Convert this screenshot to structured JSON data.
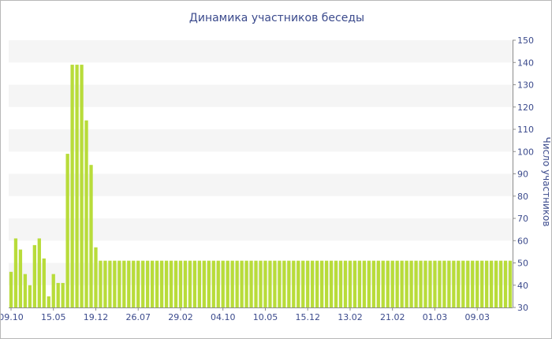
{
  "chart_data": {
    "type": "bar",
    "title": "Динамика участников беседы",
    "xlabel": "",
    "ylabel": "Число участников",
    "ylim": [
      30,
      150
    ],
    "y_ticks": [
      30,
      40,
      50,
      60,
      70,
      80,
      90,
      100,
      110,
      120,
      130,
      140,
      150
    ],
    "x_tick_labels": [
      "09.10",
      "15.05",
      "19.12",
      "26.07",
      "29.02",
      "04.10",
      "10.05",
      "15.12",
      "13.02",
      "21.02",
      "01.03",
      "09.03"
    ],
    "x_tick_bar_index": [
      0,
      9,
      18,
      27,
      36,
      45,
      54,
      63,
      72,
      81,
      90,
      99
    ],
    "y_axis_position": "right",
    "grid": "horizontal bands",
    "legend": "none",
    "values": [
      46,
      61,
      56,
      45,
      40,
      58,
      61,
      52,
      35,
      45,
      41,
      41,
      99,
      139,
      139,
      139,
      114,
      94,
      57,
      51,
      51,
      51,
      51,
      51,
      51,
      51,
      51,
      51,
      51,
      51,
      51,
      51,
      51,
      51,
      51,
      51,
      51,
      51,
      51,
      51,
      51,
      51,
      51,
      51,
      51,
      51,
      51,
      51,
      51,
      51,
      51,
      51,
      51,
      51,
      51,
      51,
      51,
      51,
      51,
      51,
      51,
      51,
      51,
      51,
      51,
      51,
      51,
      51,
      51,
      51,
      51,
      51,
      51,
      51,
      51,
      51,
      51,
      51,
      51,
      51,
      51,
      51,
      51,
      51,
      51,
      51,
      51,
      51,
      51,
      51,
      51,
      51,
      51,
      51,
      51,
      51,
      51,
      51,
      51,
      51,
      51,
      51,
      51,
      51,
      51,
      51,
      51
    ],
    "colors": {
      "bar": "#b8dc3a",
      "text": "#3b4a8c",
      "band": "#f5f5f5",
      "axis": "#8c8c8c"
    }
  }
}
